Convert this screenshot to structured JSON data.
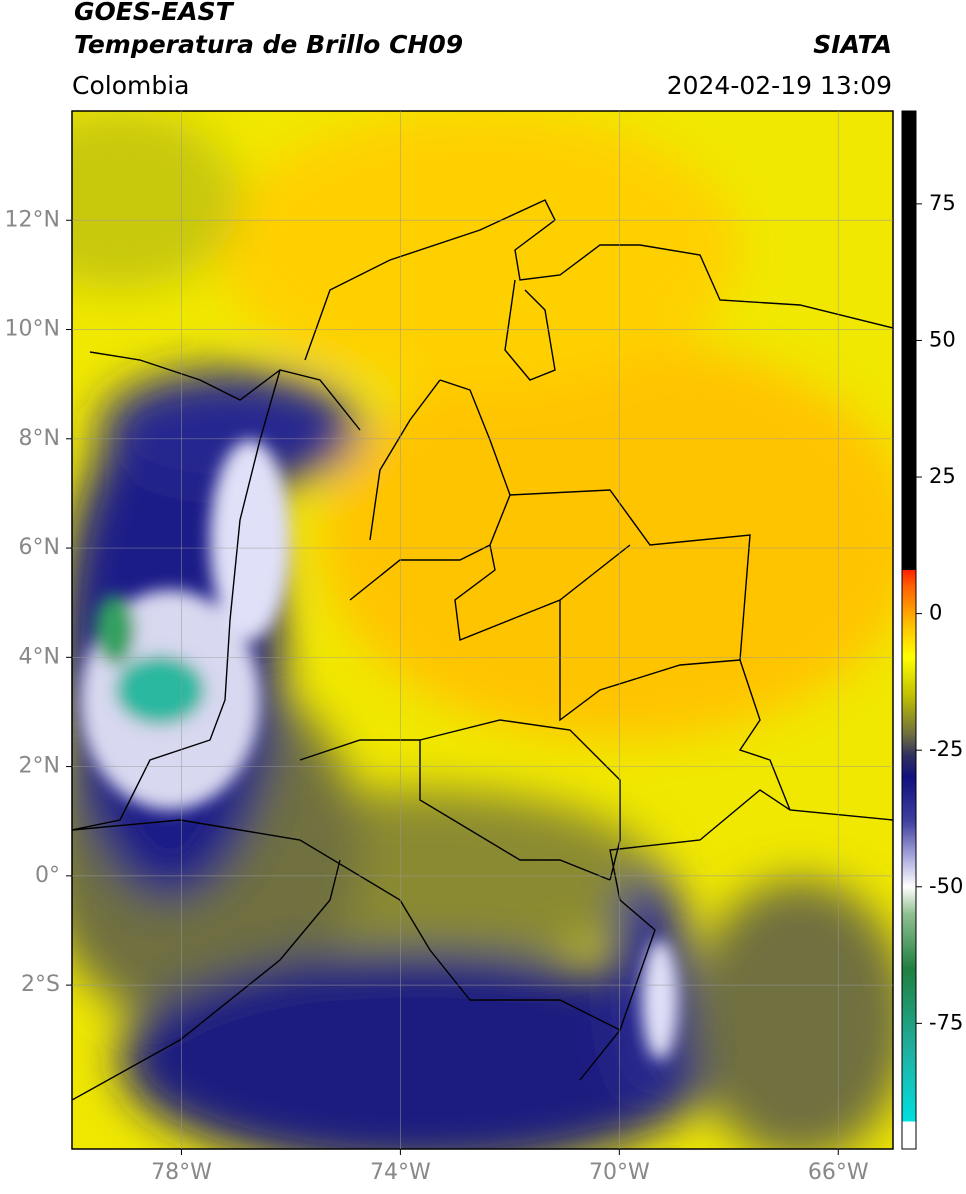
{
  "header": {
    "satellite": "GOES-EAST",
    "product": "Temperatura de Brillo CH09",
    "source": "SIATA",
    "region": "Colombia",
    "datetime": "2024-02-19 13:09"
  },
  "map": {
    "lonlim": [
      -80,
      -65
    ],
    "latlim": [
      -5,
      14
    ],
    "lonticks": [
      {
        "value": -78,
        "label": "78°W"
      },
      {
        "value": -74,
        "label": "74°W"
      },
      {
        "value": -70,
        "label": "70°W"
      },
      {
        "value": -66,
        "label": "66°W"
      }
    ],
    "latticks": [
      {
        "value": 12,
        "label": "12°N"
      },
      {
        "value": 10,
        "label": "10°N"
      },
      {
        "value": 8,
        "label": "8°N"
      },
      {
        "value": 6,
        "label": "6°N"
      },
      {
        "value": 4,
        "label": "4°N"
      },
      {
        "value": 2,
        "label": "2°N"
      },
      {
        "value": 0,
        "label": "0°"
      },
      {
        "value": -2,
        "label": "2°S"
      }
    ],
    "grid": true
  },
  "colorbar": {
    "clim": [
      -98,
      92
    ],
    "ticks": [
      75,
      50,
      25,
      0,
      -25,
      -50,
      -75
    ],
    "colormap": [
      {
        "value": -98,
        "color": "#ffffff"
      },
      {
        "value": -93,
        "color": "#ffffff"
      },
      {
        "value": -93,
        "color": "#00e0e0"
      },
      {
        "value": -80,
        "color": "#20b0a0"
      },
      {
        "value": -65,
        "color": "#208040"
      },
      {
        "value": -55,
        "color": "#90c090"
      },
      {
        "value": -50,
        "color": "#ffffff"
      },
      {
        "value": -45,
        "color": "#b0b0e0"
      },
      {
        "value": -38,
        "color": "#4040a0"
      },
      {
        "value": -30,
        "color": "#101080"
      },
      {
        "value": -26,
        "color": "#303060"
      },
      {
        "value": -22,
        "color": "#707040"
      },
      {
        "value": -15,
        "color": "#c0c000"
      },
      {
        "value": -8,
        "color": "#ffff00"
      },
      {
        "value": -2,
        "color": "#ffc000"
      },
      {
        "value": 5,
        "color": "#ff6000"
      },
      {
        "value": 8,
        "color": "#ff2000"
      },
      {
        "value": 8,
        "color": "#000000"
      },
      {
        "value": 92,
        "color": "#000000"
      }
    ]
  }
}
